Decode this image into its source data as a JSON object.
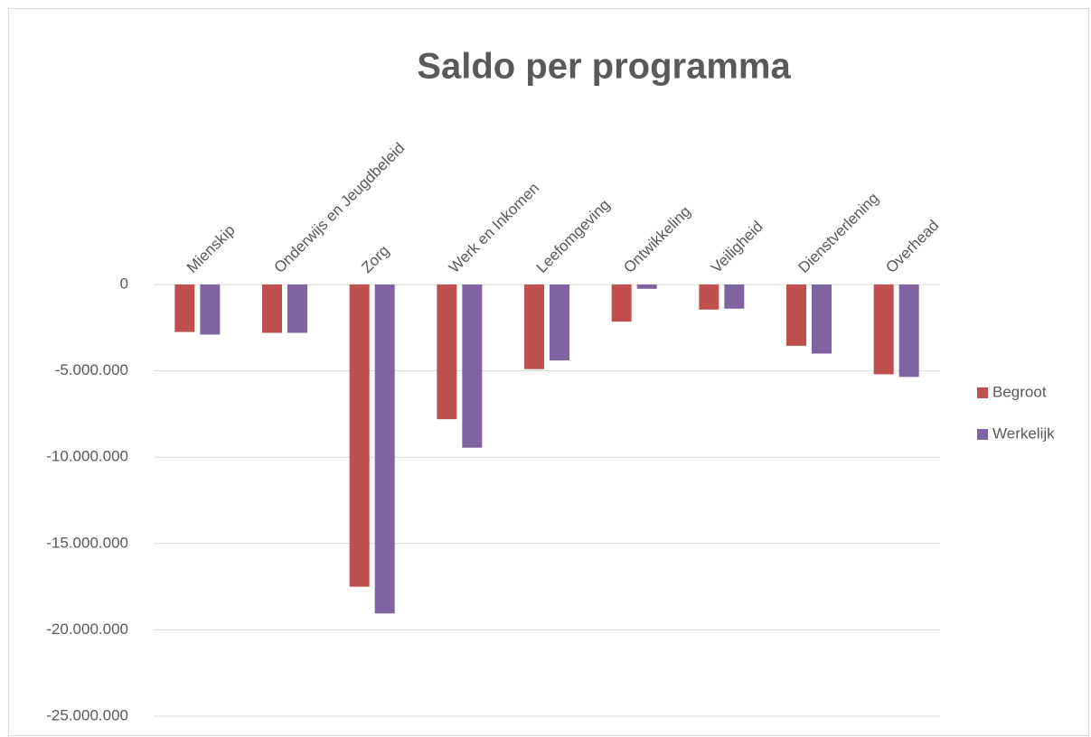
{
  "chart_data": {
    "type": "bar",
    "title": "Saldo per programma",
    "categories": [
      "Mienskip",
      "Onderwijs en Jeugdbeleid",
      "Zorg",
      "Werk en Inkomen",
      "Leefomgeving",
      "Ontwikkeling",
      "Veiligheid",
      "Dienstverlening",
      "Overhead"
    ],
    "series": [
      {
        "name": "Begroot",
        "color": "#c0504d",
        "values": [
          -2750000,
          -2800000,
          -17500000,
          -7800000,
          -4900000,
          -2150000,
          -1450000,
          -3550000,
          -5200000
        ]
      },
      {
        "name": "Werkelijk",
        "color": "#8064a2",
        "values": [
          -2900000,
          -2800000,
          -19050000,
          -9450000,
          -4400000,
          -250000,
          -1400000,
          -4000000,
          -5350000
        ]
      }
    ],
    "ylim": [
      -25000000,
      0
    ],
    "yticks": [
      0,
      {
        "value": -5000000,
        "label": "-5.000.000"
      },
      {
        "value": -10000000,
        "label": "-10.000.000"
      },
      {
        "value": -15000000,
        "label": "-15.000.000"
      },
      {
        "value": -20000000,
        "label": "-20.000.000"
      },
      {
        "value": -25000000,
        "label": "-25.000.000"
      }
    ],
    "grid": true,
    "legend": "right"
  }
}
